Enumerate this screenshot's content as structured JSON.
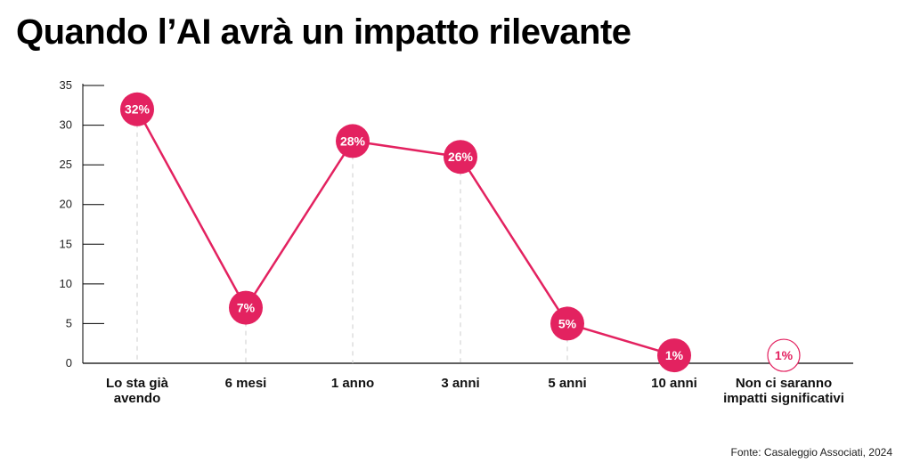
{
  "title": "Quando l’AI avrà un impatto rilevante",
  "source": "Fonte: Casaleggio Associati, 2024",
  "colors": {
    "accent": "#e32260",
    "axis": "#000000",
    "guide": "#cccccc"
  },
  "chart_data": {
    "type": "line",
    "ylim": [
      0,
      35
    ],
    "yticks": [
      "0",
      "5",
      "10",
      "15",
      "20",
      "25",
      "30",
      "35"
    ],
    "categories": [
      [
        "Lo sta già",
        "avendo"
      ],
      [
        "6 mesi"
      ],
      [
        "1 anno"
      ],
      [
        "3 anni"
      ],
      [
        "5 anni"
      ],
      [
        "10 anni"
      ],
      [
        "Non ci saranno",
        "impatti significativi"
      ]
    ],
    "values": [
      32,
      7,
      28,
      26,
      5,
      1,
      1
    ],
    "labels": [
      "32%",
      "7%",
      "28%",
      "26%",
      "5%",
      "1%",
      "1%"
    ],
    "connected": [
      true,
      true,
      true,
      true,
      true,
      true,
      false
    ]
  }
}
